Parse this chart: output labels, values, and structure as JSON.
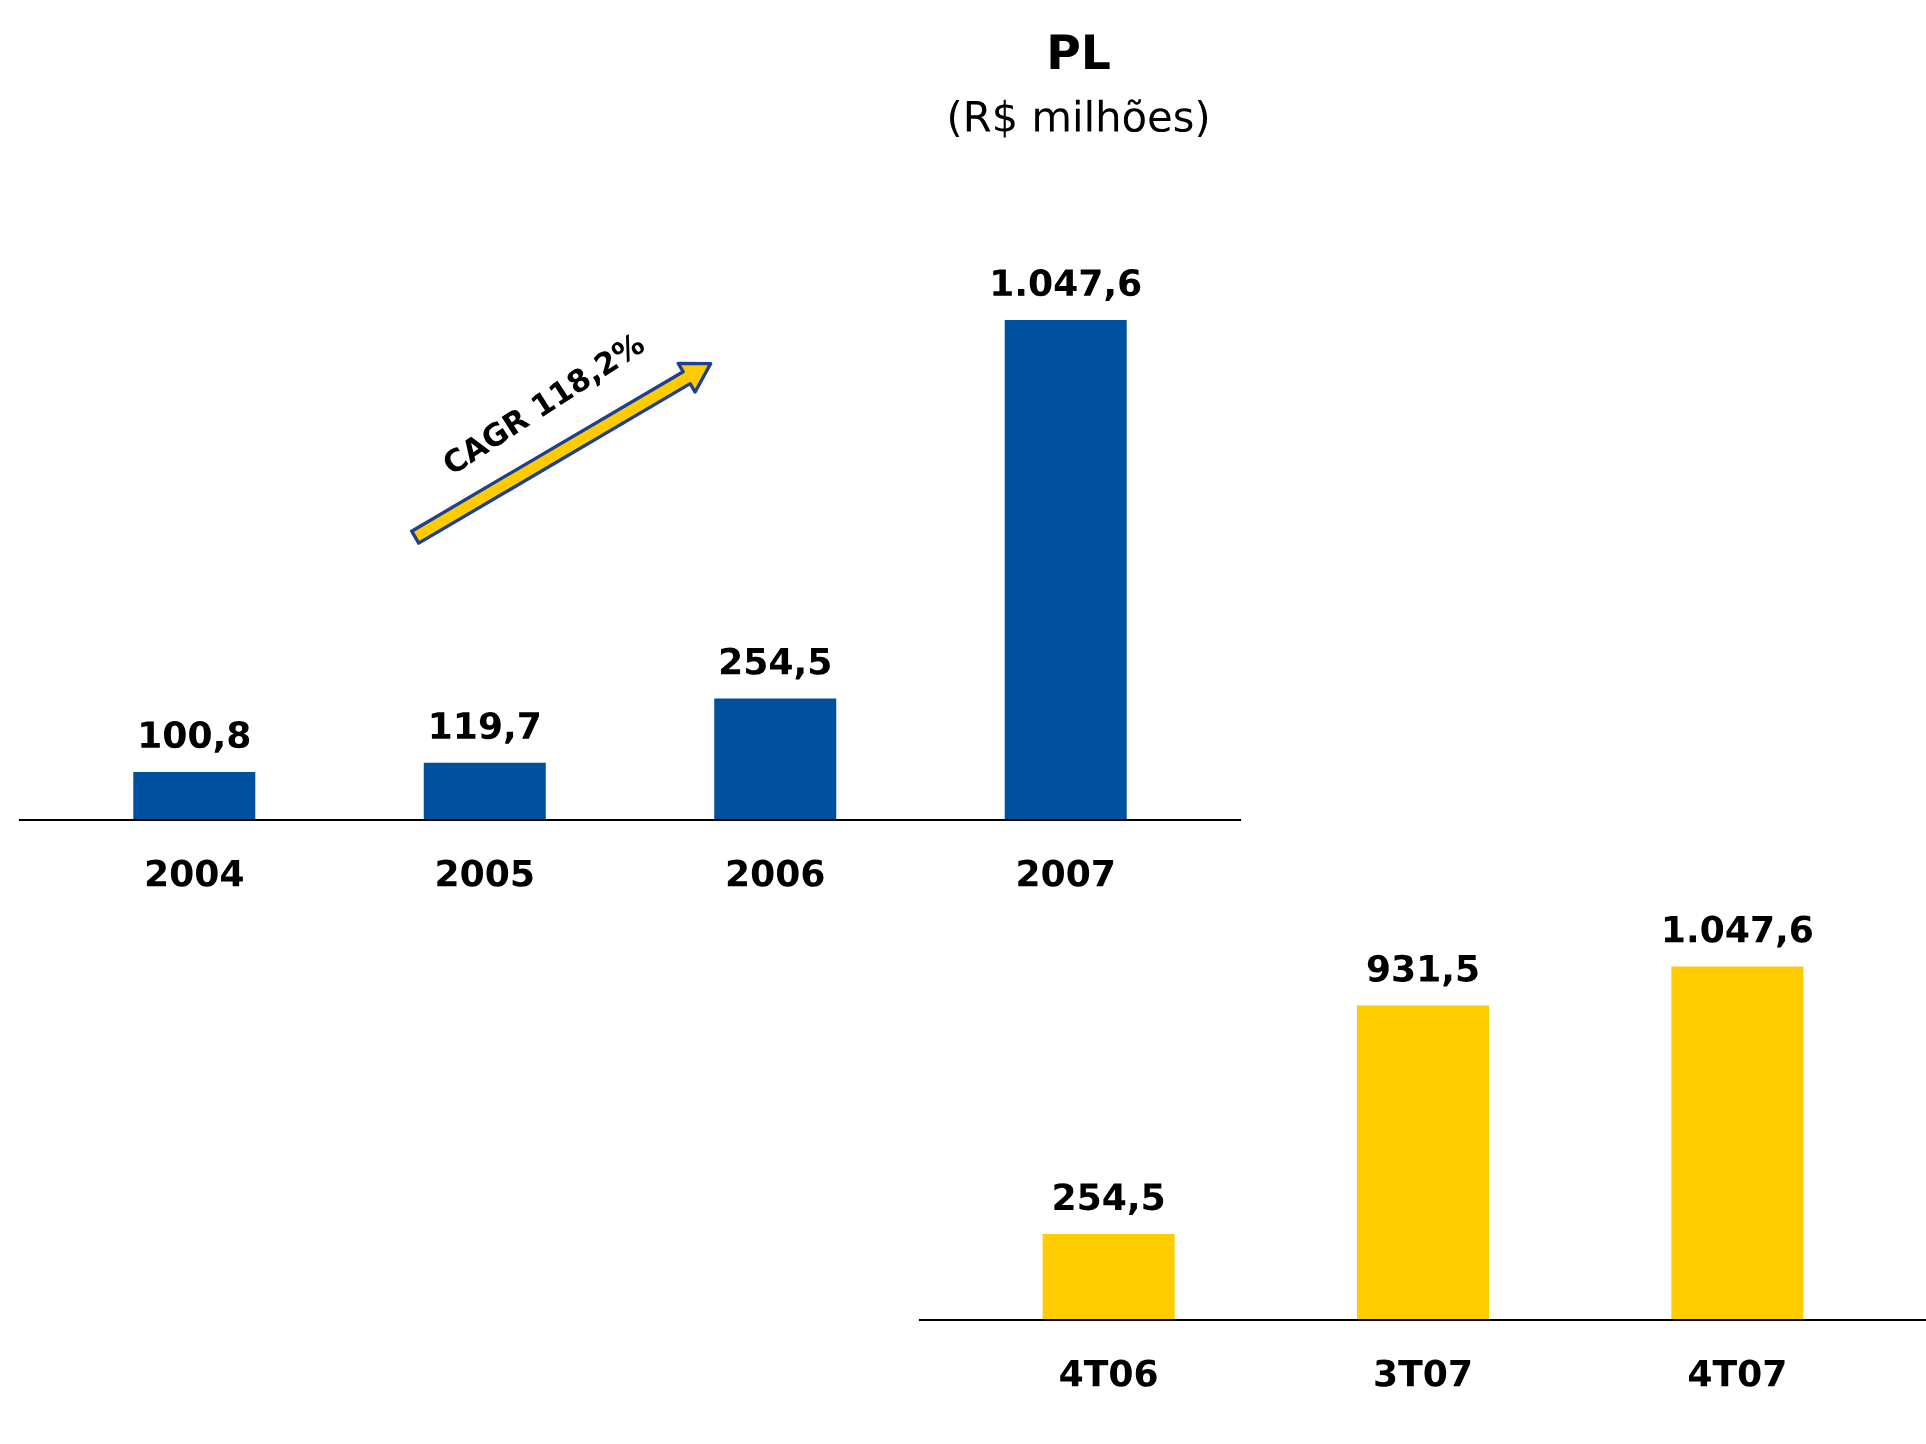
{
  "chart_data": [
    {
      "type": "bar",
      "title": "PL",
      "subtitle": "(R$ milhões)",
      "categories": [
        "2004",
        "2005",
        "2006",
        "2007"
      ],
      "values": [
        100.8,
        119.7,
        254.5,
        1047.6
      ],
      "value_labels": [
        "100,8",
        "119,7",
        "254,5",
        "1.047,6"
      ],
      "color": "#0050a0",
      "annotations": [
        "CAGR 118,2%"
      ]
    },
    {
      "type": "bar",
      "categories": [
        "4T06",
        "3T07",
        "4T07"
      ],
      "values": [
        254.5,
        931.5,
        1047.6
      ],
      "value_labels": [
        "254,5",
        "931,5",
        "1.047,6"
      ],
      "color": "#ffcc00"
    }
  ]
}
